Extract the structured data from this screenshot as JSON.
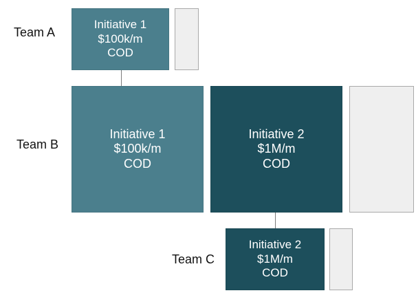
{
  "colors": {
    "initiative_1": "#4b7f8d",
    "initiative_2": "#1d4f5c",
    "empty_slot": "#efefef",
    "connector": "#7a7a7a"
  },
  "teams": [
    {
      "label": "Team A",
      "initiative": {
        "name": "Initiative 1",
        "value": "$100k/m",
        "unit": "COD"
      }
    },
    {
      "label": "Team B",
      "initiatives": [
        {
          "name": "Initiative 1",
          "value": "$100k/m",
          "unit": "COD"
        },
        {
          "name": "Initiative 2",
          "value": "$1M/m",
          "unit": "COD"
        }
      ]
    },
    {
      "label": "Team C",
      "initiative": {
        "name": "Initiative 2",
        "value": "$1M/m",
        "unit": "COD"
      }
    }
  ]
}
